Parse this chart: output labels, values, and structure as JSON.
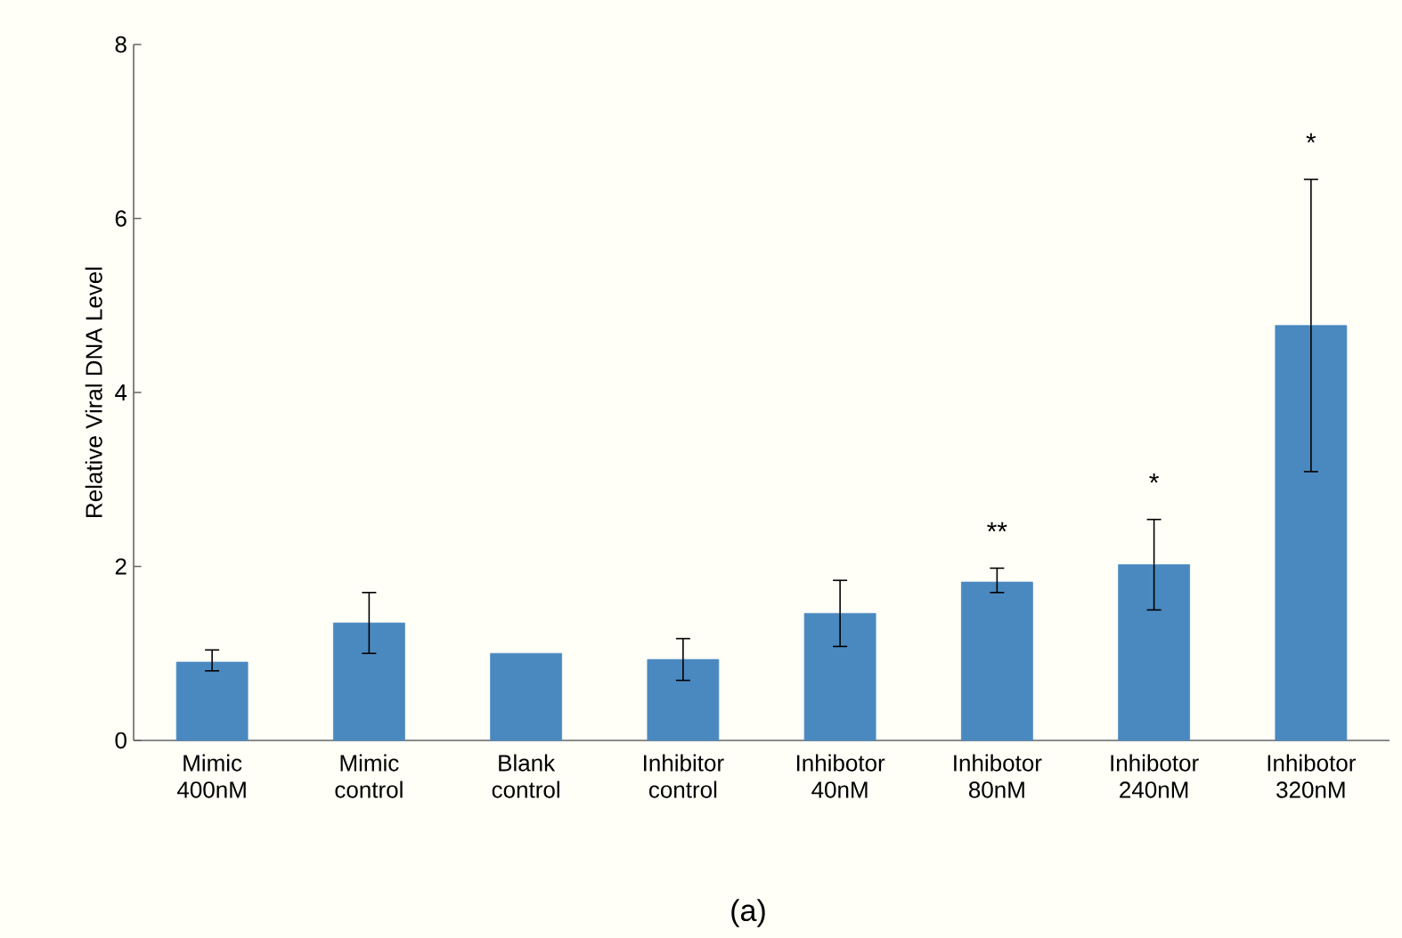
{
  "chart_data": {
    "type": "bar",
    "ylabel": "Relative Viral DNA Level",
    "categories": [
      "Mimic 400nM",
      "Mimic control",
      "Blank control",
      "Inhibitor control",
      "Inhibotor 40nM",
      "Inhibotor 80nM",
      "Inhibotor 240nM",
      "Inhibotor 320nM"
    ],
    "values": [
      0.9,
      1.35,
      1.0,
      0.93,
      1.46,
      1.82,
      2.02,
      4.77
    ],
    "errors": [
      [
        0.8,
        1.04
      ],
      [
        1.0,
        1.7
      ],
      null,
      [
        0.69,
        1.17
      ],
      [
        1.08,
        1.84
      ],
      [
        1.7,
        1.98
      ],
      [
        1.5,
        2.54
      ],
      [
        3.09,
        6.45
      ]
    ],
    "color": "#4a89c0",
    "ylim": [
      0,
      8
    ],
    "yticks": [
      0,
      2,
      4,
      6,
      8
    ],
    "grid": false,
    "annotations": [
      "**",
      "*",
      "*",
      "(a)"
    ]
  }
}
